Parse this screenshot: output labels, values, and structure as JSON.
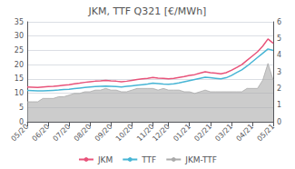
{
  "chart_data": {
    "type": "line",
    "title": "JKM, TTF Q321 [€/MWh]",
    "categories": [
      "05/20",
      null,
      null,
      null,
      "06/20",
      null,
      null,
      null,
      "07/20",
      null,
      null,
      null,
      "08/20",
      null,
      null,
      null,
      "09/20",
      null,
      null,
      null,
      "10/20",
      null,
      null,
      null,
      "11/20",
      null,
      null,
      "12/20",
      null,
      null,
      null,
      "01/21",
      null,
      null,
      null,
      "02/21",
      null,
      null,
      null,
      "03/21",
      null,
      null,
      null,
      "04/21",
      null,
      null,
      null,
      "05/21"
    ],
    "ylim": [
      0,
      35
    ],
    "yticks": [
      0,
      5,
      10,
      15,
      20,
      25,
      30,
      35
    ],
    "y2lim": [
      0,
      6
    ],
    "y2ticks": [
      0,
      1,
      2,
      3,
      4,
      5,
      6
    ],
    "grid": true,
    "legend": "bottom",
    "series": [
      {
        "name": "JKM",
        "color": "#e8537a",
        "values": [
          12.2,
          12.1,
          12.0,
          12.2,
          12.3,
          12.4,
          12.6,
          12.8,
          13.0,
          13.3,
          13.5,
          13.8,
          14.0,
          14.2,
          14.3,
          14.5,
          14.3,
          14.2,
          14.0,
          14.2,
          14.5,
          14.8,
          15.0,
          15.2,
          15.5,
          15.3,
          15.2,
          15.0,
          15.2,
          15.5,
          15.8,
          16.2,
          16.5,
          17.0,
          17.5,
          17.2,
          17.0,
          16.8,
          17.2,
          18.0,
          19.0,
          20.0,
          21.5,
          23.0,
          24.5,
          26.5,
          29.0,
          27.5
        ]
      },
      {
        "name": "TTF",
        "color": "#47b5d5",
        "values": [
          11.0,
          10.9,
          10.8,
          10.8,
          10.9,
          11.0,
          11.1,
          11.3,
          11.4,
          11.6,
          11.8,
          12.0,
          12.2,
          12.3,
          12.4,
          12.5,
          12.4,
          12.3,
          12.2,
          12.4,
          12.6,
          12.8,
          13.0,
          13.2,
          13.5,
          13.4,
          13.2,
          13.1,
          13.3,
          13.6,
          14.0,
          14.4,
          14.8,
          15.2,
          15.6,
          15.4,
          15.2,
          15.0,
          15.4,
          16.2,
          17.2,
          18.2,
          19.5,
          21.0,
          22.5,
          24.0,
          25.5,
          25.0
        ]
      },
      {
        "name": "JKM-TTF",
        "type": "area",
        "axis": "y2",
        "color": "#aaaaaa",
        "values": [
          1.2,
          1.2,
          1.2,
          1.4,
          1.4,
          1.4,
          1.5,
          1.5,
          1.6,
          1.7,
          1.7,
          1.8,
          1.8,
          1.9,
          1.9,
          2.0,
          1.9,
          1.9,
          1.8,
          1.8,
          1.9,
          2.0,
          2.0,
          2.0,
          2.0,
          1.9,
          2.0,
          1.9,
          1.9,
          1.9,
          1.8,
          1.8,
          1.7,
          1.8,
          1.9,
          1.8,
          1.8,
          1.8,
          1.8,
          1.8,
          1.8,
          1.8,
          2.0,
          2.0,
          2.0,
          2.5,
          3.5,
          2.5
        ]
      }
    ]
  }
}
